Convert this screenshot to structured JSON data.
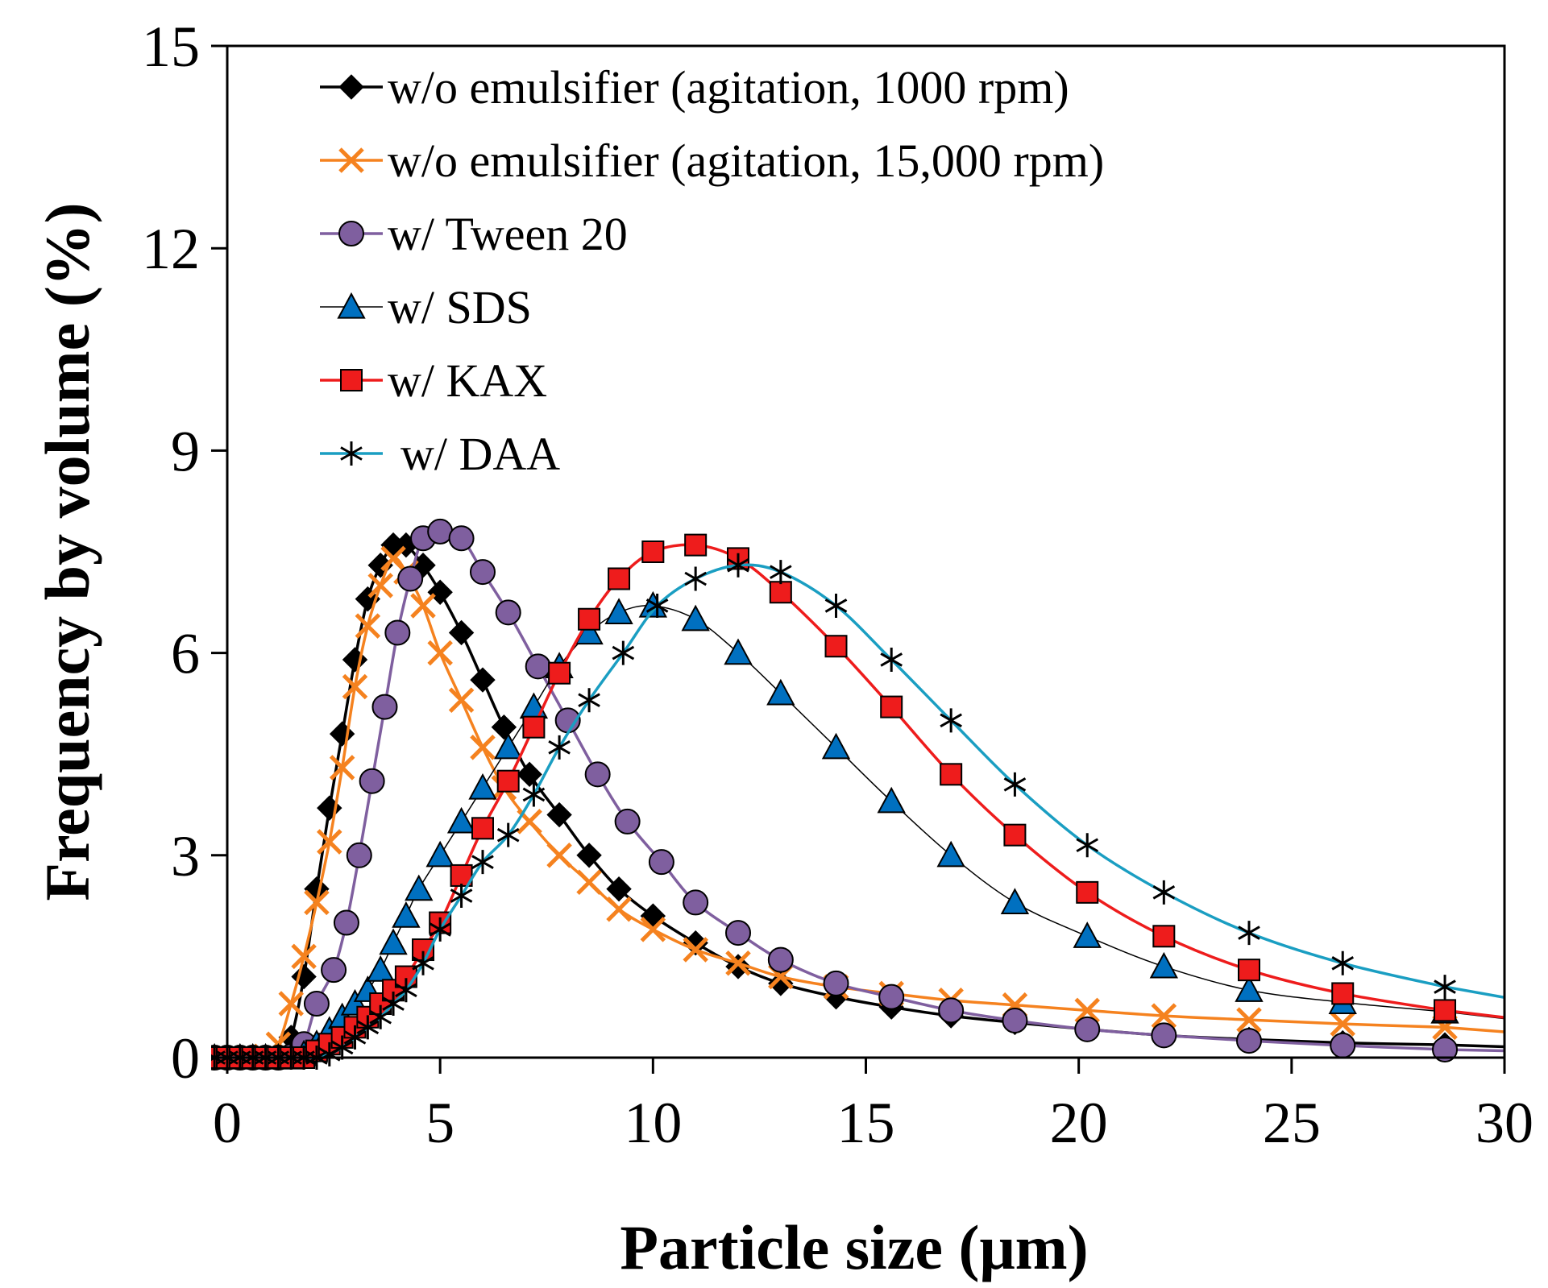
{
  "chart_data": {
    "type": "line",
    "title": "",
    "xlabel": "Particle size (μm)",
    "ylabel": "Frequency by volume (%)",
    "xlim": [
      0,
      30
    ],
    "ylim": [
      0,
      15
    ],
    "xticks": [
      "0",
      "5",
      "10",
      "15",
      "20",
      "25",
      "30"
    ],
    "yticks": [
      "0",
      "3",
      "6",
      "9",
      "12",
      "15"
    ],
    "grid": false,
    "legend": "top-left",
    "series": [
      {
        "name": "w/o emulsifier (agitation, 1000 rpm)",
        "color": "#000000",
        "line": "#000000",
        "marker": "diamond",
        "x": [
          -0.3,
          0,
          0.3,
          0.6,
          0.9,
          1.2,
          1.5,
          1.8,
          2.1,
          2.4,
          2.7,
          3.0,
          3.3,
          3.6,
          3.9,
          4.2,
          4.6,
          5.0,
          5.5,
          6.0,
          6.5,
          7.1,
          7.8,
          8.5,
          9.2,
          10.0,
          11.0,
          12.0,
          13.0,
          14.3,
          15.6,
          17.0,
          18.5,
          20.2,
          22.0,
          24.0,
          26.2,
          28.6
        ],
        "y": [
          0,
          0,
          0,
          0,
          0,
          0.02,
          0.3,
          1.2,
          2.5,
          3.7,
          4.8,
          5.9,
          6.8,
          7.3,
          7.6,
          7.6,
          7.3,
          6.9,
          6.3,
          5.6,
          4.9,
          4.2,
          3.6,
          3.0,
          2.5,
          2.1,
          1.7,
          1.35,
          1.1,
          0.9,
          0.75,
          0.62,
          0.52,
          0.42,
          0.33,
          0.27,
          0.22,
          0.19
        ]
      },
      {
        "name": "w/o emulsifier (agitation, 15,000 rpm)",
        "color": "#f5821f",
        "line": "#f5821f",
        "marker": "x",
        "x": [
          -0.3,
          0,
          0.3,
          0.6,
          0.9,
          1.2,
          1.5,
          1.8,
          2.1,
          2.4,
          2.7,
          3.0,
          3.3,
          3.6,
          3.9,
          4.2,
          4.6,
          5.0,
          5.5,
          6.0,
          6.5,
          7.1,
          7.8,
          8.5,
          9.2,
          10.0,
          11.0,
          12.0,
          13.0,
          14.3,
          15.6,
          17.0,
          18.5,
          20.2,
          22.0,
          24.0,
          26.2,
          28.6
        ],
        "y": [
          0,
          0,
          0,
          0,
          0.02,
          0.2,
          0.8,
          1.5,
          2.3,
          3.2,
          4.3,
          5.5,
          6.4,
          7.0,
          7.4,
          7.2,
          6.7,
          6.0,
          5.3,
          4.6,
          4.0,
          3.5,
          3.0,
          2.6,
          2.2,
          1.9,
          1.6,
          1.4,
          1.2,
          1.05,
          0.95,
          0.85,
          0.78,
          0.7,
          0.62,
          0.56,
          0.5,
          0.45
        ]
      },
      {
        "name": "w/ Tween 20",
        "color": "#7f5f9f",
        "line": "#7f5f9f",
        "marker": "circle",
        "x": [
          -0.3,
          0,
          0.3,
          0.6,
          0.9,
          1.2,
          1.5,
          1.8,
          2.1,
          2.5,
          2.8,
          3.1,
          3.4,
          3.7,
          4.0,
          4.3,
          4.6,
          5.0,
          5.5,
          6.0,
          6.6,
          7.3,
          8.0,
          8.7,
          9.4,
          10.2,
          11.0,
          12.0,
          13.0,
          14.3,
          15.6,
          17.0,
          18.5,
          20.2,
          22.0,
          24.0,
          26.2,
          28.6
        ],
        "y": [
          0,
          0,
          0,
          0,
          0,
          0,
          0.02,
          0.2,
          0.8,
          1.3,
          2.0,
          3.0,
          4.1,
          5.2,
          6.3,
          7.1,
          7.7,
          7.8,
          7.7,
          7.2,
          6.6,
          5.8,
          5.0,
          4.2,
          3.5,
          2.9,
          2.3,
          1.85,
          1.45,
          1.1,
          0.9,
          0.7,
          0.55,
          0.42,
          0.33,
          0.25,
          0.18,
          0.12
        ]
      },
      {
        "name": "w/ SDS",
        "color": "#0070c0",
        "line": "#000000",
        "marker": "triangle",
        "x": [
          -0.3,
          0,
          0.3,
          0.6,
          0.9,
          1.2,
          1.5,
          1.8,
          2.1,
          2.4,
          2.7,
          3.0,
          3.3,
          3.6,
          3.9,
          4.2,
          4.5,
          5.0,
          5.5,
          6.0,
          6.6,
          7.2,
          7.8,
          8.5,
          9.2,
          10.0,
          11.0,
          12.0,
          13.0,
          14.3,
          15.6,
          17.0,
          18.5,
          20.2,
          22.0,
          24.0,
          26.2,
          28.6
        ],
        "y": [
          0,
          0,
          0,
          0,
          0,
          0,
          0,
          0.05,
          0.2,
          0.4,
          0.6,
          0.8,
          1.0,
          1.3,
          1.7,
          2.1,
          2.5,
          3.0,
          3.5,
          4.0,
          4.6,
          5.2,
          5.8,
          6.3,
          6.6,
          6.7,
          6.5,
          6.0,
          5.4,
          4.6,
          3.8,
          3.0,
          2.3,
          1.8,
          1.35,
          1.0,
          0.82,
          0.68
        ]
      },
      {
        "name": "w/ KAX",
        "color": "#ee1c1c",
        "line": "#ee1c1c",
        "marker": "square",
        "x": [
          -0.3,
          0,
          0.3,
          0.6,
          0.9,
          1.2,
          1.5,
          1.8,
          2.1,
          2.4,
          2.7,
          3.0,
          3.3,
          3.6,
          3.9,
          4.2,
          4.6,
          5.0,
          5.5,
          6.0,
          6.6,
          7.2,
          7.8,
          8.5,
          9.2,
          10.0,
          11.0,
          12.0,
          13.0,
          14.3,
          15.6,
          17.0,
          18.5,
          20.2,
          22.0,
          24.0,
          26.2,
          28.6
        ],
        "y": [
          0,
          0,
          0,
          0,
          0,
          0,
          0,
          0,
          0.1,
          0.2,
          0.3,
          0.45,
          0.6,
          0.8,
          1.0,
          1.2,
          1.6,
          2.0,
          2.7,
          3.4,
          4.1,
          4.9,
          5.7,
          6.5,
          7.1,
          7.5,
          7.6,
          7.4,
          6.9,
          6.1,
          5.2,
          4.2,
          3.3,
          2.45,
          1.8,
          1.3,
          0.95,
          0.7
        ]
      },
      {
        "name": "w/ DAA",
        "color": "#000000",
        "line": "#1a9ec2",
        "marker": "star",
        "x": [
          -0.3,
          0,
          0.3,
          0.6,
          0.9,
          1.2,
          1.5,
          1.8,
          2.1,
          2.4,
          2.7,
          3.0,
          3.3,
          3.6,
          3.9,
          4.2,
          4.6,
          5.0,
          5.5,
          6.0,
          6.6,
          7.2,
          7.8,
          8.5,
          9.3,
          10.1,
          11.0,
          12.0,
          13.0,
          14.3,
          15.6,
          17.0,
          18.5,
          20.2,
          22.0,
          24.0,
          26.2,
          28.6
        ],
        "y": [
          0,
          0,
          0,
          0,
          0,
          0,
          0,
          0,
          0,
          0.05,
          0.15,
          0.3,
          0.45,
          0.6,
          0.8,
          1.0,
          1.4,
          1.9,
          2.4,
          2.9,
          3.3,
          3.9,
          4.6,
          5.3,
          6.0,
          6.7,
          7.1,
          7.3,
          7.2,
          6.7,
          5.9,
          5.0,
          4.05,
          3.15,
          2.45,
          1.85,
          1.4,
          1.05
        ]
      }
    ]
  }
}
